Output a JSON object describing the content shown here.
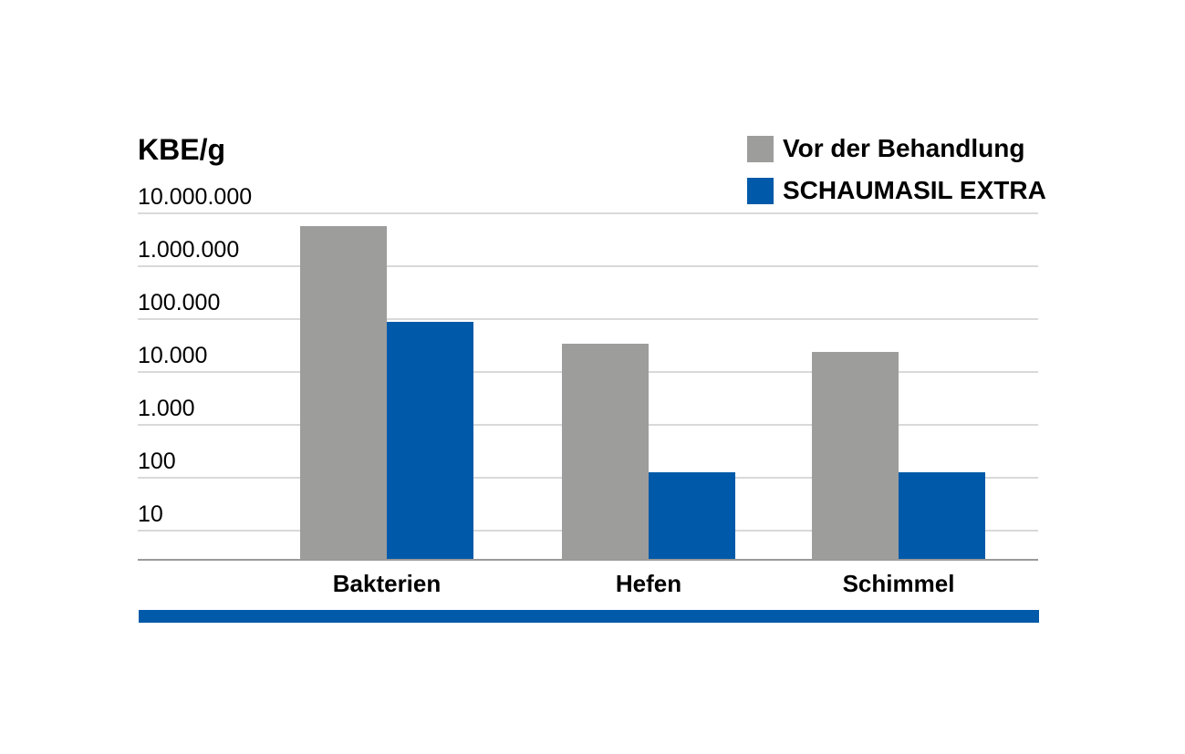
{
  "chart_data": {
    "type": "bar",
    "scale": "log",
    "title": "",
    "ylabel": "KBE/g",
    "xlabel": "",
    "categories": [
      "Bakterien",
      "Hefen",
      "Schimmel"
    ],
    "series": [
      {
        "name": "Vor der Behandlung",
        "color": "#9d9d9b",
        "values": [
          5500000,
          33000,
          23000
        ]
      },
      {
        "name": "SCHAUMASIL EXTRA",
        "color": "#005aa9",
        "values": [
          85000,
          120,
          120
        ]
      }
    ],
    "y_ticks": [
      "10.000.000",
      "1.000.000",
      "100.000",
      "10.000",
      "1.000",
      "100",
      "10"
    ],
    "y_tick_values": [
      10000000,
      1000000,
      100000,
      10000,
      1000,
      100,
      10
    ],
    "ylim": [
      3,
      10000000
    ],
    "grid": true,
    "legend_position": "top-right"
  },
  "colors": {
    "accent_band": "#005aa9",
    "gridline": "#d9d9d9",
    "axis_line": "#9a9a9a",
    "text": "#000000",
    "background": "#ffffff"
  }
}
